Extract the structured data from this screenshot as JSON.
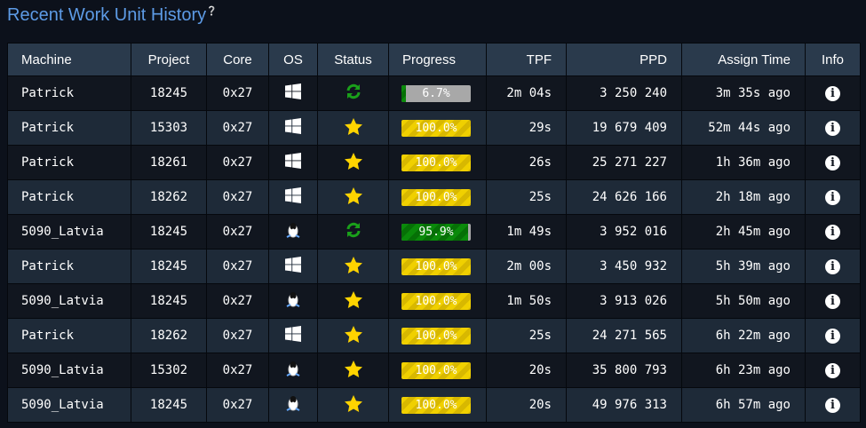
{
  "title": "Recent Work Unit History",
  "help_icon": "question-circle-icon",
  "headers": [
    "Machine",
    "Project",
    "Core",
    "OS",
    "Status",
    "Progress",
    "TPF",
    "PPD",
    "Assign Time",
    "Info"
  ],
  "colors": {
    "title": "#5d9be6",
    "running": "#0a8a0a",
    "done": "#f0d000"
  },
  "rows": [
    {
      "machine": "Patrick",
      "project": "18245",
      "core": "0x27",
      "os": "windows",
      "status": "running",
      "progress": 6.7,
      "progress_label": "6.7%",
      "tpf": "2m 04s",
      "ppd": "3 250 240",
      "assign": "3m 35s ago"
    },
    {
      "machine": "Patrick",
      "project": "15303",
      "core": "0x27",
      "os": "windows",
      "status": "done",
      "progress": 100,
      "progress_label": "100.0%",
      "tpf": "29s",
      "ppd": "19 679 409",
      "assign": "52m 44s ago"
    },
    {
      "machine": "Patrick",
      "project": "18261",
      "core": "0x27",
      "os": "windows",
      "status": "done",
      "progress": 100,
      "progress_label": "100.0%",
      "tpf": "26s",
      "ppd": "25 271 227",
      "assign": "1h 36m ago"
    },
    {
      "machine": "Patrick",
      "project": "18262",
      "core": "0x27",
      "os": "windows",
      "status": "done",
      "progress": 100,
      "progress_label": "100.0%",
      "tpf": "25s",
      "ppd": "24 626 166",
      "assign": "2h 18m ago"
    },
    {
      "machine": "5090_Latvia",
      "project": "18245",
      "core": "0x27",
      "os": "linux",
      "status": "running",
      "progress": 95.9,
      "progress_label": "95.9%",
      "tpf": "1m 49s",
      "ppd": "3 952 016",
      "assign": "2h 45m ago"
    },
    {
      "machine": "Patrick",
      "project": "18245",
      "core": "0x27",
      "os": "windows",
      "status": "done",
      "progress": 100,
      "progress_label": "100.0%",
      "tpf": "2m 00s",
      "ppd": "3 450 932",
      "assign": "5h 39m ago"
    },
    {
      "machine": "5090_Latvia",
      "project": "18245",
      "core": "0x27",
      "os": "linux",
      "status": "done",
      "progress": 100,
      "progress_label": "100.0%",
      "tpf": "1m 50s",
      "ppd": "3 913 026",
      "assign": "5h 50m ago"
    },
    {
      "machine": "Patrick",
      "project": "18262",
      "core": "0x27",
      "os": "windows",
      "status": "done",
      "progress": 100,
      "progress_label": "100.0%",
      "tpf": "25s",
      "ppd": "24 271 565",
      "assign": "6h 22m ago"
    },
    {
      "machine": "5090_Latvia",
      "project": "15302",
      "core": "0x27",
      "os": "linux",
      "status": "done",
      "progress": 100,
      "progress_label": "100.0%",
      "tpf": "20s",
      "ppd": "35 800 793",
      "assign": "6h 23m ago"
    },
    {
      "machine": "5090_Latvia",
      "project": "18245",
      "core": "0x27",
      "os": "linux",
      "status": "done",
      "progress": 100,
      "progress_label": "100.0%",
      "tpf": "20s",
      "ppd": "49 976 313",
      "assign": "6h 57m ago"
    }
  ]
}
